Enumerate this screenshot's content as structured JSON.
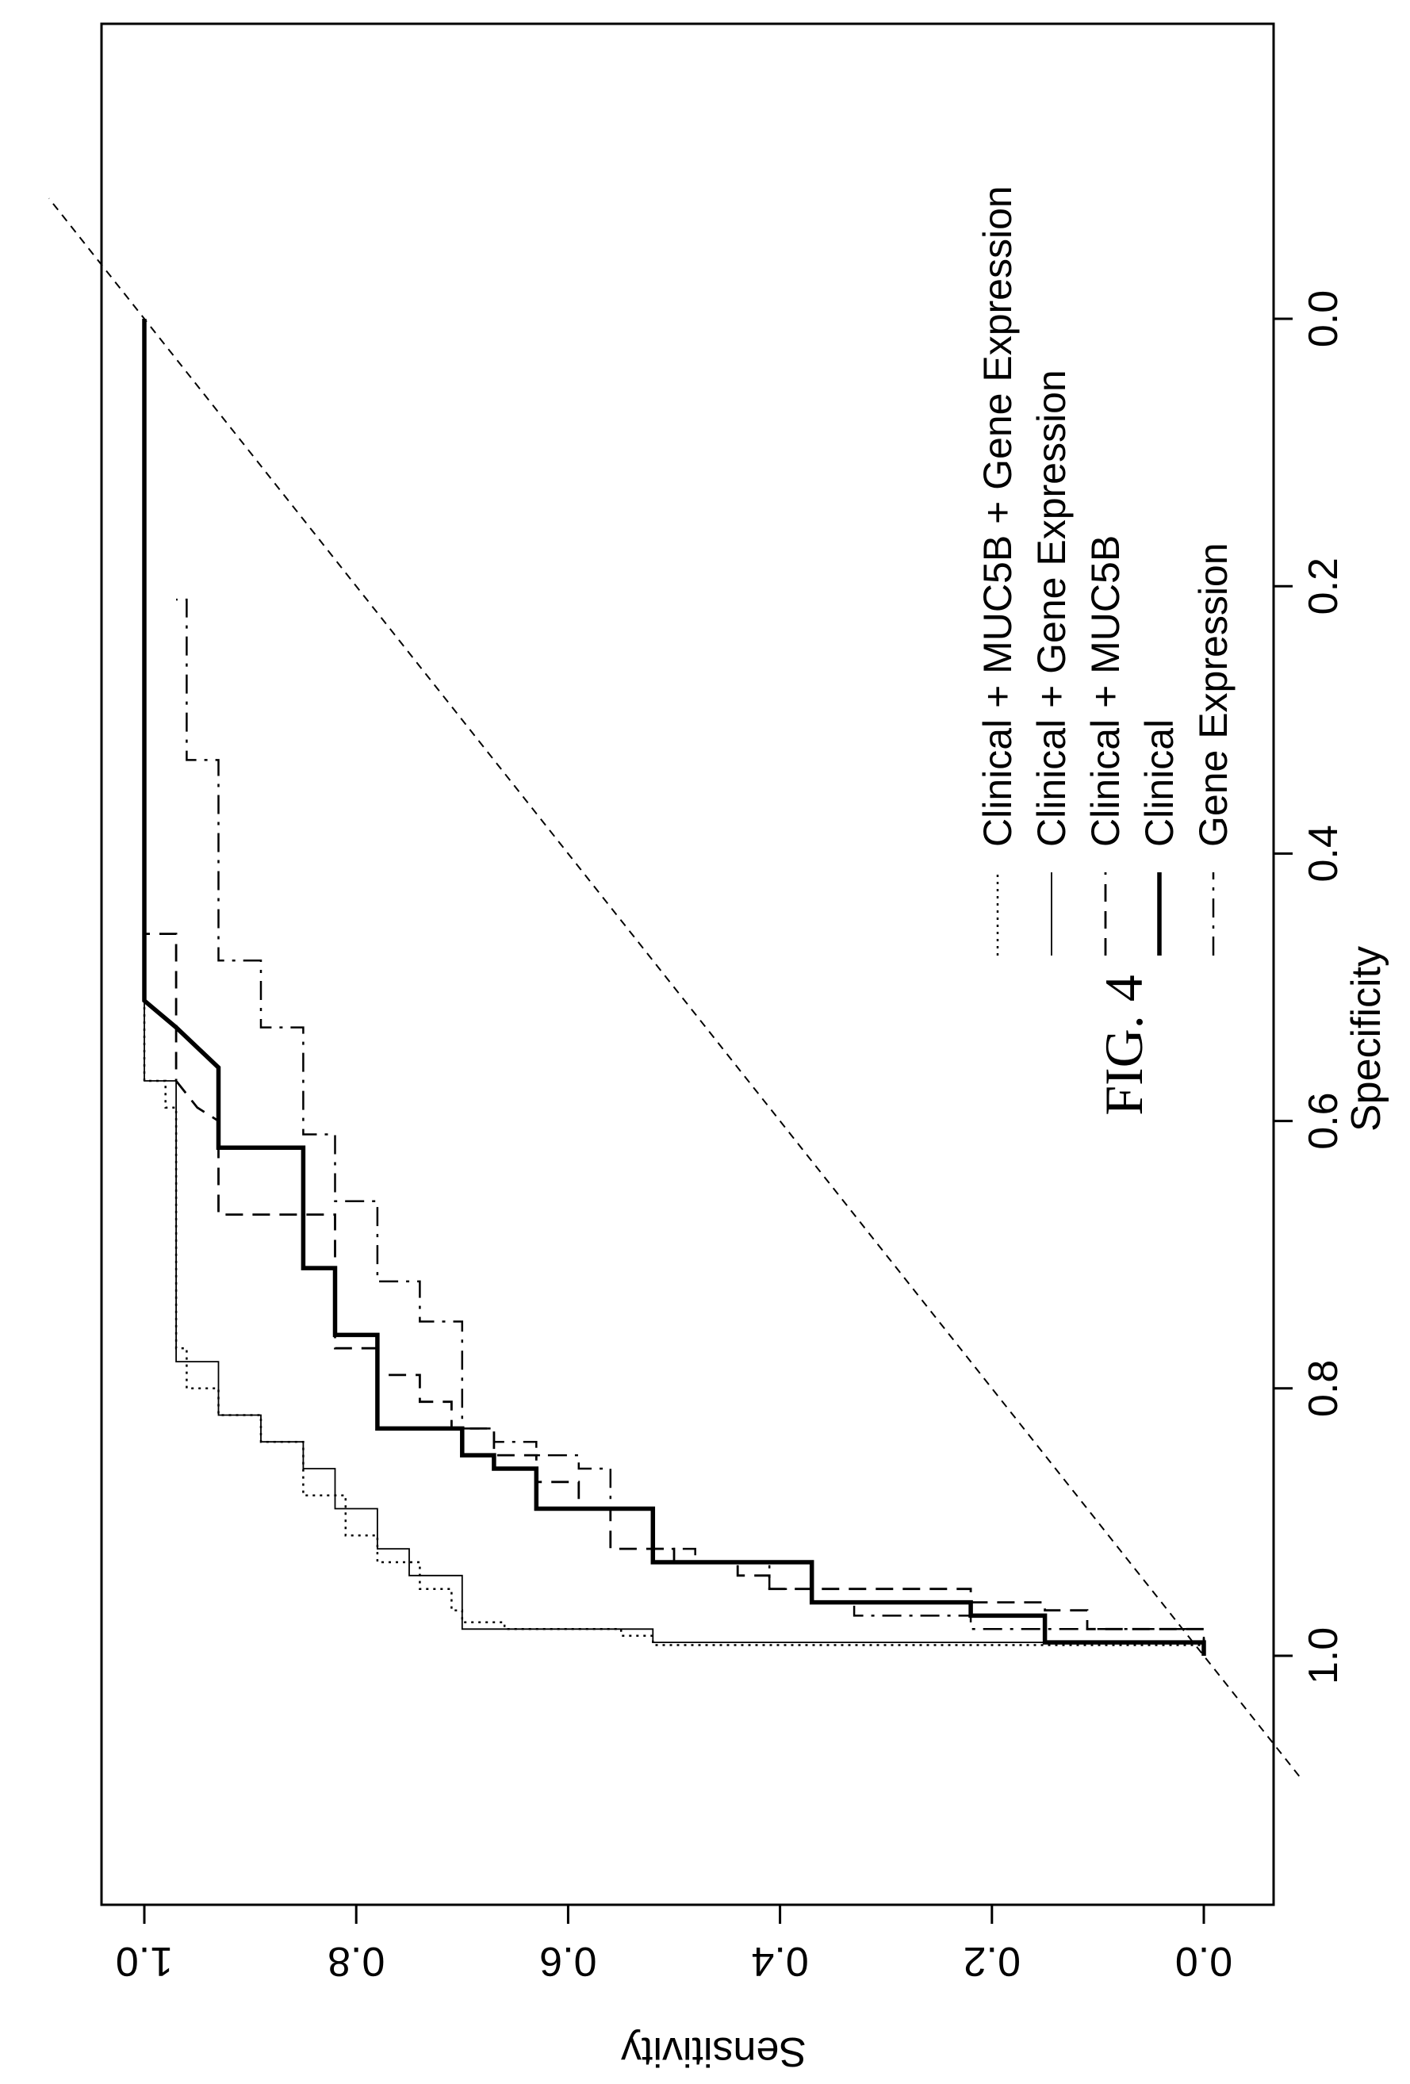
{
  "figure": {
    "title": "FIG. 4"
  },
  "chart_data": {
    "type": "line",
    "xlabel": "Specificity",
    "ylabel": "Sensitivity",
    "x_reversed": true,
    "xlim": [
      1.2,
      -0.2
    ],
    "ylim": [
      -0.04,
      1.04
    ],
    "x_ticks": [
      1.0,
      0.8,
      0.6,
      0.4,
      0.2,
      0.0
    ],
    "x_tick_labels": [
      "1.0",
      "0.8",
      "0.6",
      "0.4",
      "0.2",
      "0.0"
    ],
    "y_ticks": [
      0.0,
      0.2,
      0.4,
      0.6,
      0.8,
      1.0
    ],
    "y_tick_labels": [
      "0.0",
      "0.2",
      "0.4",
      "0.6",
      "0.8",
      "1.0"
    ],
    "legend_position": "top-right",
    "reference_line": {
      "style": "dashed",
      "from": [
        1.0,
        0.0
      ],
      "to": [
        0.0,
        1.0
      ]
    },
    "series": [
      {
        "name": "Clinical + MUC5B + Gene Expression",
        "style": "dotted",
        "points": [
          [
            1.0,
            0.0
          ],
          [
            0.992,
            0.0
          ],
          [
            0.992,
            0.52
          ],
          [
            0.985,
            0.52
          ],
          [
            0.985,
            0.55
          ],
          [
            0.98,
            0.55
          ],
          [
            0.98,
            0.66
          ],
          [
            0.975,
            0.66
          ],
          [
            0.975,
            0.7
          ],
          [
            0.966,
            0.7
          ],
          [
            0.966,
            0.71
          ],
          [
            0.95,
            0.71
          ],
          [
            0.95,
            0.74
          ],
          [
            0.93,
            0.74
          ],
          [
            0.93,
            0.78
          ],
          [
            0.91,
            0.78
          ],
          [
            0.91,
            0.81
          ],
          [
            0.88,
            0.81
          ],
          [
            0.88,
            0.85
          ],
          [
            0.84,
            0.85
          ],
          [
            0.84,
            0.89
          ],
          [
            0.82,
            0.89
          ],
          [
            0.82,
            0.93
          ],
          [
            0.8,
            0.93
          ],
          [
            0.8,
            0.96
          ],
          [
            0.77,
            0.96
          ],
          [
            0.77,
            0.97
          ],
          [
            0.59,
            0.97
          ],
          [
            0.59,
            0.98
          ],
          [
            0.57,
            0.98
          ],
          [
            0.57,
            1.0
          ],
          [
            0.0,
            1.0
          ]
        ]
      },
      {
        "name": "Clinical + Gene Expression",
        "style": "thin-solid",
        "points": [
          [
            1.0,
            0.0
          ],
          [
            0.99,
            0.0
          ],
          [
            0.99,
            0.52
          ],
          [
            0.98,
            0.52
          ],
          [
            0.98,
            0.7
          ],
          [
            0.94,
            0.7
          ],
          [
            0.94,
            0.75
          ],
          [
            0.92,
            0.75
          ],
          [
            0.92,
            0.78
          ],
          [
            0.89,
            0.78
          ],
          [
            0.89,
            0.82
          ],
          [
            0.86,
            0.82
          ],
          [
            0.86,
            0.85
          ],
          [
            0.84,
            0.85
          ],
          [
            0.84,
            0.89
          ],
          [
            0.82,
            0.89
          ],
          [
            0.82,
            0.93
          ],
          [
            0.78,
            0.93
          ],
          [
            0.78,
            0.97
          ],
          [
            0.57,
            0.97
          ],
          [
            0.57,
            1.0
          ],
          [
            0.0,
            1.0
          ]
        ]
      },
      {
        "name": "Clinical + MUC5B",
        "style": "dashed",
        "points": [
          [
            1.0,
            0.0
          ],
          [
            0.98,
            0.0
          ],
          [
            0.98,
            0.11
          ],
          [
            0.966,
            0.11
          ],
          [
            0.966,
            0.15
          ],
          [
            0.96,
            0.15
          ],
          [
            0.96,
            0.22
          ],
          [
            0.95,
            0.22
          ],
          [
            0.95,
            0.41
          ],
          [
            0.94,
            0.41
          ],
          [
            0.94,
            0.44
          ],
          [
            0.93,
            0.44
          ],
          [
            0.93,
            0.5
          ],
          [
            0.92,
            0.5
          ],
          [
            0.92,
            0.56
          ],
          [
            0.89,
            0.56
          ],
          [
            0.89,
            0.59
          ],
          [
            0.87,
            0.59
          ],
          [
            0.87,
            0.63
          ],
          [
            0.85,
            0.63
          ],
          [
            0.85,
            0.67
          ],
          [
            0.83,
            0.67
          ],
          [
            0.83,
            0.71
          ],
          [
            0.81,
            0.71
          ],
          [
            0.81,
            0.74
          ],
          [
            0.79,
            0.74
          ],
          [
            0.79,
            0.78
          ],
          [
            0.77,
            0.78
          ],
          [
            0.77,
            0.82
          ],
          [
            0.67,
            0.82
          ],
          [
            0.67,
            0.93
          ],
          [
            0.6,
            0.93
          ],
          [
            0.59,
            0.95
          ],
          [
            0.57,
            0.97
          ],
          [
            0.46,
            0.97
          ],
          [
            0.46,
            1.0
          ],
          [
            0.0,
            1.0
          ]
        ]
      },
      {
        "name": "Clinical",
        "style": "thick-solid",
        "points": [
          [
            1.0,
            0.0
          ],
          [
            0.99,
            0.0
          ],
          [
            0.99,
            0.15
          ],
          [
            0.97,
            0.15
          ],
          [
            0.97,
            0.22
          ],
          [
            0.96,
            0.22
          ],
          [
            0.96,
            0.37
          ],
          [
            0.93,
            0.37
          ],
          [
            0.93,
            0.52
          ],
          [
            0.89,
            0.52
          ],
          [
            0.89,
            0.63
          ],
          [
            0.86,
            0.63
          ],
          [
            0.86,
            0.67
          ],
          [
            0.85,
            0.67
          ],
          [
            0.85,
            0.7
          ],
          [
            0.83,
            0.7
          ],
          [
            0.83,
            0.78
          ],
          [
            0.76,
            0.78
          ],
          [
            0.76,
            0.82
          ],
          [
            0.71,
            0.82
          ],
          [
            0.71,
            0.85
          ],
          [
            0.62,
            0.85
          ],
          [
            0.62,
            0.93
          ],
          [
            0.56,
            0.93
          ],
          [
            0.53,
            0.97
          ],
          [
            0.51,
            1.0
          ],
          [
            0.0,
            1.0
          ]
        ]
      },
      {
        "name": "Gene Expression",
        "style": "dash-dot",
        "points": [
          [
            1.0,
            0.0
          ],
          [
            0.98,
            0.0
          ],
          [
            0.98,
            0.22
          ],
          [
            0.97,
            0.22
          ],
          [
            0.97,
            0.33
          ],
          [
            0.96,
            0.33
          ],
          [
            0.96,
            0.37
          ],
          [
            0.95,
            0.37
          ],
          [
            0.95,
            0.41
          ],
          [
            0.93,
            0.41
          ],
          [
            0.93,
            0.48
          ],
          [
            0.92,
            0.48
          ],
          [
            0.92,
            0.52
          ],
          [
            0.89,
            0.52
          ],
          [
            0.89,
            0.56
          ],
          [
            0.86,
            0.56
          ],
          [
            0.86,
            0.59
          ],
          [
            0.85,
            0.59
          ],
          [
            0.85,
            0.63
          ],
          [
            0.84,
            0.63
          ],
          [
            0.84,
            0.67
          ],
          [
            0.83,
            0.67
          ],
          [
            0.83,
            0.7
          ],
          [
            0.75,
            0.7
          ],
          [
            0.75,
            0.74
          ],
          [
            0.72,
            0.74
          ],
          [
            0.72,
            0.78
          ],
          [
            0.66,
            0.78
          ],
          [
            0.66,
            0.82
          ],
          [
            0.61,
            0.82
          ],
          [
            0.61,
            0.85
          ],
          [
            0.53,
            0.85
          ],
          [
            0.53,
            0.89
          ],
          [
            0.48,
            0.89
          ],
          [
            0.48,
            0.93
          ],
          [
            0.33,
            0.93
          ],
          [
            0.33,
            0.96
          ],
          [
            0.21,
            0.96
          ],
          [
            0.21,
            0.97
          ],
          [
            0.21,
            0.97
          ]
        ]
      }
    ]
  }
}
